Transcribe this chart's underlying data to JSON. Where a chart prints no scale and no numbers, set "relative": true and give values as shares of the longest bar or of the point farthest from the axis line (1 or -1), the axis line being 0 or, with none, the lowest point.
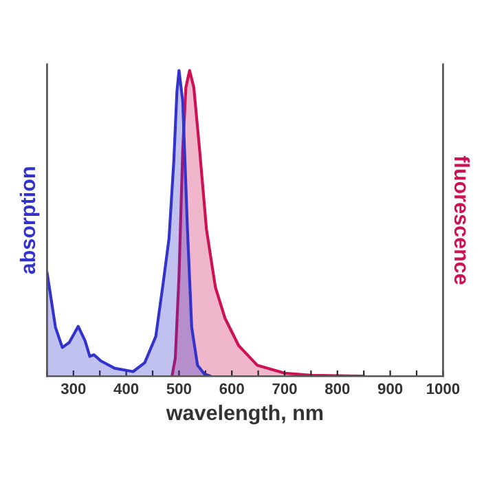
{
  "chart_data": {
    "type": "area",
    "relative": true,
    "xlabel": "wavelength, nm",
    "ylabel": "absorption",
    "y2label": "fluorescence",
    "xlim": [
      250,
      1000
    ],
    "xticks": [
      {
        "value": 250,
        "label": null
      },
      300,
      {
        "value": 350,
        "label": null
      },
      400,
      {
        "value": 450,
        "label": null
      },
      500,
      {
        "value": 550,
        "label": null
      },
      600,
      {
        "value": 650,
        "label": null
      },
      700,
      {
        "value": 750,
        "label": null
      },
      800,
      {
        "value": 850,
        "label": null
      },
      900,
      {
        "value": 950,
        "label": null
      },
      1000
    ],
    "grid": false,
    "legend": false,
    "series": [
      {
        "color": "#3333cc",
        "x": [
          250,
          266,
          279,
          292,
          309,
          322,
          331,
          339,
          352,
          378,
          413,
          435,
          456,
          470,
          481,
          490,
          496,
          500,
          507,
          516,
          524,
          535,
          548,
          560
        ],
        "values": [
          0.34,
          0.16,
          0.094,
          0.11,
          0.163,
          0.116,
          0.065,
          0.07,
          0.05,
          0.026,
          0.015,
          0.044,
          0.13,
          0.305,
          0.45,
          0.7,
          0.93,
          1,
          0.9,
          0.48,
          0.16,
          0.036,
          0.007,
          0
        ]
      },
      {
        "color": "#cc1155",
        "axis": "y2",
        "x": [
          487,
          493,
          500,
          507,
          513,
          520,
          528,
          539,
          552,
          569,
          587,
          613,
          648,
          700,
          750,
          850
        ],
        "values": [
          0.003,
          0.06,
          0.33,
          0.74,
          0.945,
          1,
          0.945,
          0.74,
          0.48,
          0.29,
          0.19,
          0.1,
          0.036,
          0.01,
          0.003,
          0
        ]
      }
    ]
  }
}
